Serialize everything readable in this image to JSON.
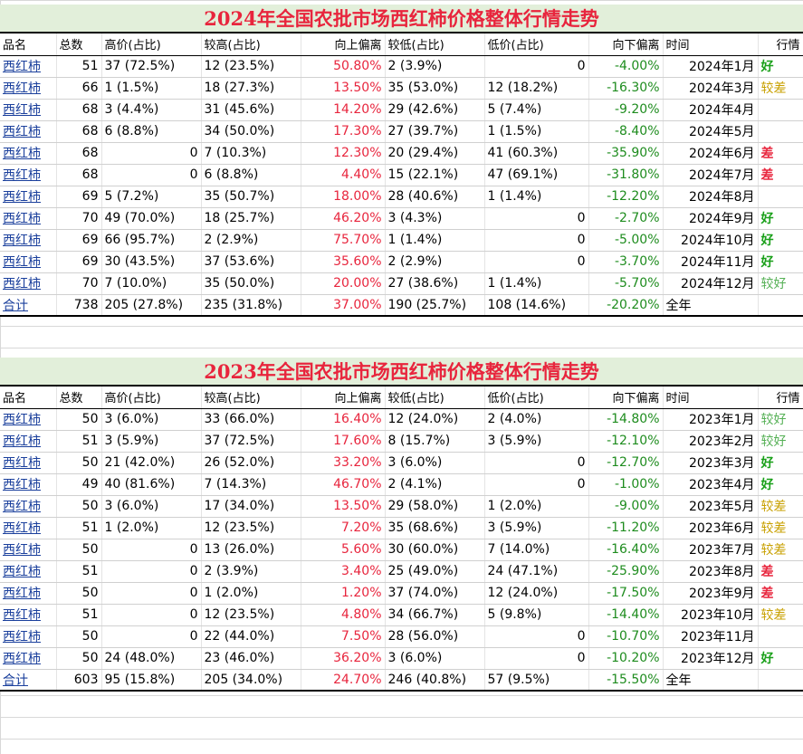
{
  "headers": [
    "品名",
    "总数",
    "高价(占比)",
    "较高(占比)",
    "向上偏离",
    "较低(占比)",
    "低价(占比)",
    "向下偏离",
    "时间",
    "行情"
  ],
  "tables": [
    {
      "title": "2024年全国农批市场西红柿价格整体行情走势",
      "rows": [
        {
          "name": "西红柿",
          "total": "51",
          "high": "37 (72.5%)",
          "higher": "12 (23.5%)",
          "up": "50.80%",
          "lower": "2 (3.9%)",
          "low": "0",
          "down": "-4.00%",
          "time": "2024年1月",
          "trend": "好",
          "level": "good"
        },
        {
          "name": "西红柿",
          "total": "66",
          "high": "1 (1.5%)",
          "higher": "18 (27.3%)",
          "up": "13.50%",
          "lower": "35 (53.0%)",
          "low": "12 (18.2%)",
          "down": "-16.30%",
          "time": "2024年3月",
          "trend": "较差",
          "level": "meh"
        },
        {
          "name": "西红柿",
          "total": "68",
          "high": "3 (4.4%)",
          "higher": "31 (45.6%)",
          "up": "14.20%",
          "lower": "29 (42.6%)",
          "low": "5 (7.4%)",
          "down": "-9.20%",
          "time": "2024年4月",
          "trend": "",
          "level": ""
        },
        {
          "name": "西红柿",
          "total": "68",
          "high": "6 (8.8%)",
          "higher": "34 (50.0%)",
          "up": "17.30%",
          "lower": "27 (39.7%)",
          "low": "1 (1.5%)",
          "down": "-8.40%",
          "time": "2024年5月",
          "trend": "",
          "level": ""
        },
        {
          "name": "西红柿",
          "total": "68",
          "high": "0",
          "higher": "7 (10.3%)",
          "up": "12.30%",
          "lower": "20 (29.4%)",
          "low": "41 (60.3%)",
          "down": "-35.90%",
          "time": "2024年6月",
          "trend": "差",
          "level": "bad"
        },
        {
          "name": "西红柿",
          "total": "68",
          "high": "0",
          "higher": "6 (8.8%)",
          "up": "4.40%",
          "lower": "15 (22.1%)",
          "low": "47 (69.1%)",
          "down": "-31.80%",
          "time": "2024年7月",
          "trend": "差",
          "level": "bad"
        },
        {
          "name": "西红柿",
          "total": "69",
          "high": "5 (7.2%)",
          "higher": "35 (50.7%)",
          "up": "18.00%",
          "lower": "28 (40.6%)",
          "low": "1 (1.4%)",
          "down": "-12.20%",
          "time": "2024年8月",
          "trend": "",
          "level": ""
        },
        {
          "name": "西红柿",
          "total": "70",
          "high": "49 (70.0%)",
          "higher": "18 (25.7%)",
          "up": "46.20%",
          "lower": "3 (4.3%)",
          "low": "0",
          "down": "-2.70%",
          "time": "2024年9月",
          "trend": "好",
          "level": "good"
        },
        {
          "name": "西红柿",
          "total": "69",
          "high": "66 (95.7%)",
          "higher": "2 (2.9%)",
          "up": "75.70%",
          "lower": "1 (1.4%)",
          "low": "0",
          "down": "-5.00%",
          "time": "2024年10月",
          "trend": "好",
          "level": "good"
        },
        {
          "name": "西红柿",
          "total": "69",
          "high": "30 (43.5%)",
          "higher": "37 (53.6%)",
          "up": "35.60%",
          "lower": "2 (2.9%)",
          "low": "0",
          "down": "-3.70%",
          "time": "2024年11月",
          "trend": "好",
          "level": "good"
        },
        {
          "name": "西红柿",
          "total": "70",
          "high": "7 (10.0%)",
          "higher": "35 (50.0%)",
          "up": "20.00%",
          "lower": "27 (38.6%)",
          "low": "1 (1.4%)",
          "down": "-5.70%",
          "time": "2024年12月",
          "trend": "较好",
          "level": "fair"
        }
      ],
      "total": {
        "name": "合计",
        "total": "738",
        "high": "205 (27.8%)",
        "higher": "235 (31.8%)",
        "up": "37.00%",
        "lower": "190 (25.7%)",
        "low": "108 (14.6%)",
        "down": "-20.20%",
        "time": "全年",
        "trend": "",
        "level": ""
      }
    },
    {
      "title": "2023年全国农批市场西红柿价格整体行情走势",
      "rows": [
        {
          "name": "西红柿",
          "total": "50",
          "high": "3 (6.0%)",
          "higher": "33 (66.0%)",
          "up": "16.40%",
          "lower": "12 (24.0%)",
          "low": "2 (4.0%)",
          "down": "-14.80%",
          "time": "2023年1月",
          "trend": "较好",
          "level": "fair"
        },
        {
          "name": "西红柿",
          "total": "51",
          "high": "3 (5.9%)",
          "higher": "37 (72.5%)",
          "up": "17.60%",
          "lower": "8 (15.7%)",
          "low": "3 (5.9%)",
          "down": "-12.10%",
          "time": "2023年2月",
          "trend": "较好",
          "level": "fair"
        },
        {
          "name": "西红柿",
          "total": "50",
          "high": "21 (42.0%)",
          "higher": "26 (52.0%)",
          "up": "33.20%",
          "lower": "3 (6.0%)",
          "low": "0",
          "down": "-12.70%",
          "time": "2023年3月",
          "trend": "好",
          "level": "good"
        },
        {
          "name": "西红柿",
          "total": "49",
          "high": "40 (81.6%)",
          "higher": "7 (14.3%)",
          "up": "46.70%",
          "lower": "2 (4.1%)",
          "low": "0",
          "down": "-1.00%",
          "time": "2023年4月",
          "trend": "好",
          "level": "good"
        },
        {
          "name": "西红柿",
          "total": "50",
          "high": "3 (6.0%)",
          "higher": "17 (34.0%)",
          "up": "13.50%",
          "lower": "29 (58.0%)",
          "low": "1 (2.0%)",
          "down": "-9.00%",
          "time": "2023年5月",
          "trend": "较差",
          "level": "meh"
        },
        {
          "name": "西红柿",
          "total": "51",
          "high": "1 (2.0%)",
          "higher": "12 (23.5%)",
          "up": "7.20%",
          "lower": "35 (68.6%)",
          "low": "3 (5.9%)",
          "down": "-11.20%",
          "time": "2023年6月",
          "trend": "较差",
          "level": "meh"
        },
        {
          "name": "西红柿",
          "total": "50",
          "high": "0",
          "higher": "13 (26.0%)",
          "up": "5.60%",
          "lower": "30 (60.0%)",
          "low": "7 (14.0%)",
          "down": "-16.40%",
          "time": "2023年7月",
          "trend": "较差",
          "level": "meh"
        },
        {
          "name": "西红柿",
          "total": "51",
          "high": "0",
          "higher": "2 (3.9%)",
          "up": "3.40%",
          "lower": "25 (49.0%)",
          "low": "24 (47.1%)",
          "down": "-25.90%",
          "time": "2023年8月",
          "trend": "差",
          "level": "bad"
        },
        {
          "name": "西红柿",
          "total": "50",
          "high": "0",
          "higher": "1 (2.0%)",
          "up": "1.20%",
          "lower": "37 (74.0%)",
          "low": "12 (24.0%)",
          "down": "-17.50%",
          "time": "2023年9月",
          "trend": "差",
          "level": "bad"
        },
        {
          "name": "西红柿",
          "total": "51",
          "high": "0",
          "higher": "12 (23.5%)",
          "up": "4.80%",
          "lower": "34 (66.7%)",
          "low": "5 (9.8%)",
          "down": "-14.40%",
          "time": "2023年10月",
          "trend": "较差",
          "level": "meh"
        },
        {
          "name": "西红柿",
          "total": "50",
          "high": "0",
          "higher": "22 (44.0%)",
          "up": "7.50%",
          "lower": "28 (56.0%)",
          "low": "0",
          "down": "-10.70%",
          "time": "2023年11月",
          "trend": "",
          "level": ""
        },
        {
          "name": "西红柿",
          "total": "50",
          "high": "24 (48.0%)",
          "higher": "23 (46.0%)",
          "up": "36.20%",
          "lower": "3 (6.0%)",
          "low": "0",
          "down": "-10.20%",
          "time": "2023年12月",
          "trend": "好",
          "level": "good"
        }
      ],
      "total": {
        "name": "合计",
        "total": "603",
        "high": "95 (15.8%)",
        "higher": "205 (34.0%)",
        "up": "24.70%",
        "lower": "246 (40.8%)",
        "low": "57 (9.5%)",
        "down": "-15.50%",
        "time": "全年",
        "trend": "",
        "level": ""
      }
    }
  ]
}
